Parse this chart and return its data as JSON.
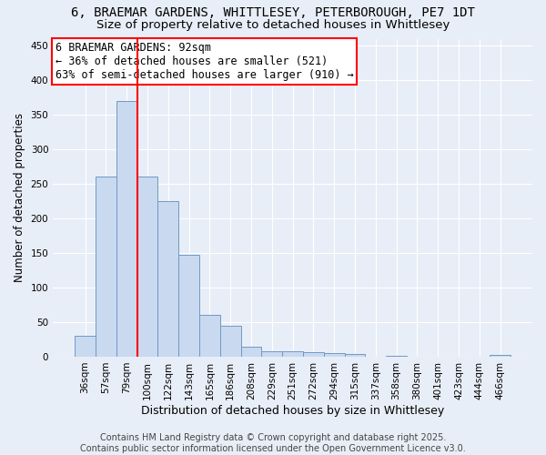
{
  "title_line1": "6, BRAEMAR GARDENS, WHITTLESEY, PETERBOROUGH, PE7 1DT",
  "title_line2": "Size of property relative to detached houses in Whittlesey",
  "xlabel": "Distribution of detached houses by size in Whittlesey",
  "ylabel": "Number of detached properties",
  "categories": [
    "36sqm",
    "57sqm",
    "79sqm",
    "100sqm",
    "122sqm",
    "143sqm",
    "165sqm",
    "186sqm",
    "208sqm",
    "229sqm",
    "251sqm",
    "272sqm",
    "294sqm",
    "315sqm",
    "337sqm",
    "358sqm",
    "380sqm",
    "401sqm",
    "423sqm",
    "444sqm",
    "466sqm"
  ],
  "values": [
    30,
    260,
    370,
    260,
    225,
    148,
    60,
    45,
    15,
    8,
    8,
    7,
    5,
    4,
    0,
    1,
    0,
    0,
    0,
    0,
    2
  ],
  "bar_color": "#c9d9f0",
  "bar_edge_color": "#7099c4",
  "vline_x_index": 2.5,
  "vline_color": "red",
  "annotation_line1": "6 BRAEMAR GARDENS: 92sqm",
  "annotation_line2": "← 36% of detached houses are smaller (521)",
  "annotation_line3": "63% of semi-detached houses are larger (910) →",
  "annotation_box_color": "white",
  "annotation_box_edge_color": "red",
  "ylim": [
    0,
    460
  ],
  "yticks": [
    0,
    50,
    100,
    150,
    200,
    250,
    300,
    350,
    400,
    450
  ],
  "bg_color": "#e8eef7",
  "grid_color": "white",
  "footer_text": "Contains HM Land Registry data © Crown copyright and database right 2025.\nContains public sector information licensed under the Open Government Licence v3.0.",
  "title_fontsize": 10,
  "subtitle_fontsize": 9.5,
  "xlabel_fontsize": 9,
  "ylabel_fontsize": 8.5,
  "tick_fontsize": 7.5,
  "annotation_fontsize": 8.5,
  "footer_fontsize": 7
}
